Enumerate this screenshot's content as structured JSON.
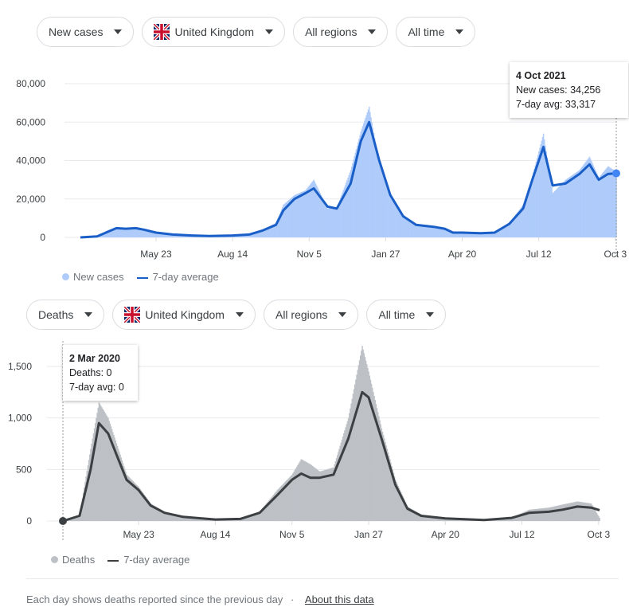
{
  "top": {
    "chips": [
      {
        "label": "New cases"
      },
      {
        "label": "United Kingdom",
        "flag": "uk-flag"
      },
      {
        "label": "All regions"
      },
      {
        "label": "All time"
      }
    ],
    "tooltip": {
      "date": "4 Oct 2021",
      "line1": "New cases: 34,256",
      "line2": "7-day avg: 33,317"
    },
    "legend": {
      "bars": "New cases",
      "line": "7-day average"
    }
  },
  "bottom": {
    "chips": [
      {
        "label": "Deaths"
      },
      {
        "label": "United Kingdom",
        "flag": "uk-flag"
      },
      {
        "label": "All regions"
      },
      {
        "label": "All time"
      }
    ],
    "tooltip": {
      "date": "2 Mar 2020",
      "line1": "Deaths: 0",
      "line2": "7-day avg: 0"
    },
    "legend": {
      "bars": "Deaths",
      "line": "7-day average"
    }
  },
  "footer": {
    "note": "Each day shows deaths reported since the previous day",
    "separator": "·",
    "link": "About this data"
  },
  "chart_data": [
    {
      "type": "bar+line",
      "x_range": [
        "2020-03-02",
        "2021-10-04"
      ],
      "ylim": [
        0,
        80000
      ],
      "yticks": [
        {
          "v": 0,
          "label": "0"
        },
        {
          "v": 20000,
          "label": "20,000"
        },
        {
          "v": 40000,
          "label": "40,000"
        },
        {
          "v": 60000,
          "label": "60,000"
        },
        {
          "v": 80000,
          "label": "80,000"
        }
      ],
      "xticks": [
        {
          "d": "2020-05-23",
          "label": "May 23"
        },
        {
          "d": "2020-08-14",
          "label": "Aug 14"
        },
        {
          "d": "2020-11-05",
          "label": "Nov 5"
        },
        {
          "d": "2021-01-27",
          "label": "Jan 27"
        },
        {
          "d": "2021-04-20",
          "label": "Apr 20"
        },
        {
          "d": "2021-07-12",
          "label": "Jul 12"
        },
        {
          "d": "2021-10-03",
          "label": "Oct 3"
        }
      ],
      "grid": true,
      "legend": "bottom-left",
      "colors": {
        "bars": "#aecbfa",
        "line": "#1a5fc8",
        "point": "#4285f4"
      },
      "series": [
        {
          "name": "New cases",
          "points": [
            [
              "2020-03-02",
              0
            ],
            [
              "2020-03-20",
              600
            ],
            [
              "2020-04-01",
              3500
            ],
            [
              "2020-04-10",
              5200
            ],
            [
              "2020-04-20",
              4800
            ],
            [
              "2020-05-01",
              5000
            ],
            [
              "2020-05-10",
              4200
            ],
            [
              "2020-05-23",
              2700
            ],
            [
              "2020-06-10",
              1600
            ],
            [
              "2020-07-01",
              1000
            ],
            [
              "2020-07-20",
              700
            ],
            [
              "2020-08-14",
              1100
            ],
            [
              "2020-09-01",
              1700
            ],
            [
              "2020-09-15",
              4000
            ],
            [
              "2020-09-30",
              7500
            ],
            [
              "2020-10-08",
              17000
            ],
            [
              "2020-10-20",
              22000
            ],
            [
              "2020-11-01",
              24500
            ],
            [
              "2020-11-10",
              30000
            ],
            [
              "2020-11-25",
              15000
            ],
            [
              "2020-12-05",
              15500
            ],
            [
              "2020-12-20",
              35000
            ],
            [
              "2020-12-31",
              55000
            ],
            [
              "2021-01-09",
              68000
            ],
            [
              "2021-01-20",
              38000
            ],
            [
              "2021-02-01",
              21000
            ],
            [
              "2021-02-15",
              10500
            ],
            [
              "2021-03-01",
              6000
            ],
            [
              "2021-03-20",
              5500
            ],
            [
              "2021-04-01",
              4500
            ],
            [
              "2021-04-10",
              2500
            ],
            [
              "2021-04-20",
              2700
            ],
            [
              "2021-05-10",
              2300
            ],
            [
              "2021-05-25",
              2700
            ],
            [
              "2021-06-10",
              7500
            ],
            [
              "2021-06-25",
              17000
            ],
            [
              "2021-07-05",
              32000
            ],
            [
              "2021-07-17",
              54000
            ],
            [
              "2021-07-27",
              23000
            ],
            [
              "2021-08-10",
              30000
            ],
            [
              "2021-08-25",
              35000
            ],
            [
              "2021-09-05",
              42000
            ],
            [
              "2021-09-15",
              31000
            ],
            [
              "2021-09-25",
              37000
            ],
            [
              "2021-10-04",
              34256
            ]
          ]
        },
        {
          "name": "7-day average",
          "points": [
            [
              "2020-03-02",
              0
            ],
            [
              "2020-03-20",
              500
            ],
            [
              "2020-04-01",
              3000
            ],
            [
              "2020-04-10",
              4800
            ],
            [
              "2020-04-20",
              4500
            ],
            [
              "2020-05-01",
              4800
            ],
            [
              "2020-05-10",
              4000
            ],
            [
              "2020-05-23",
              2500
            ],
            [
              "2020-06-10",
              1500
            ],
            [
              "2020-07-01",
              1000
            ],
            [
              "2020-07-20",
              700
            ],
            [
              "2020-08-14",
              1000
            ],
            [
              "2020-09-01",
              1500
            ],
            [
              "2020-09-15",
              3500
            ],
            [
              "2020-09-30",
              6500
            ],
            [
              "2020-10-08",
              14000
            ],
            [
              "2020-10-20",
              20000
            ],
            [
              "2020-11-01",
              23000
            ],
            [
              "2020-11-10",
              25500
            ],
            [
              "2020-11-25",
              16000
            ],
            [
              "2020-12-05",
              15000
            ],
            [
              "2020-12-20",
              28000
            ],
            [
              "2020-12-31",
              50000
            ],
            [
              "2021-01-09",
              60000
            ],
            [
              "2021-01-20",
              40000
            ],
            [
              "2021-02-01",
              22000
            ],
            [
              "2021-02-15",
              11000
            ],
            [
              "2021-03-01",
              6500
            ],
            [
              "2021-03-20",
              5500
            ],
            [
              "2021-04-01",
              4500
            ],
            [
              "2021-04-10",
              2500
            ],
            [
              "2021-04-20",
              2500
            ],
            [
              "2021-05-10",
              2200
            ],
            [
              "2021-05-25",
              2500
            ],
            [
              "2021-06-10",
              7000
            ],
            [
              "2021-06-25",
              15000
            ],
            [
              "2021-07-05",
              30000
            ],
            [
              "2021-07-17",
              47000
            ],
            [
              "2021-07-27",
              27000
            ],
            [
              "2021-08-10",
              28000
            ],
            [
              "2021-08-25",
              33000
            ],
            [
              "2021-09-05",
              38000
            ],
            [
              "2021-09-15",
              30000
            ],
            [
              "2021-09-25",
              33000
            ],
            [
              "2021-10-04",
              33317
            ]
          ]
        }
      ]
    },
    {
      "type": "bar+line",
      "x_range": [
        "2020-03-02",
        "2021-10-04"
      ],
      "ylim": [
        0,
        1700
      ],
      "yticks": [
        {
          "v": 0,
          "label": "0"
        },
        {
          "v": 500,
          "label": "500"
        },
        {
          "v": 1000,
          "label": "1,000"
        },
        {
          "v": 1500,
          "label": "1,500"
        }
      ],
      "xticks": [
        {
          "d": "2020-05-23",
          "label": "May 23"
        },
        {
          "d": "2020-08-14",
          "label": "Aug 14"
        },
        {
          "d": "2020-11-05",
          "label": "Nov 5"
        },
        {
          "d": "2021-01-27",
          "label": "Jan 27"
        },
        {
          "d": "2021-04-20",
          "label": "Apr 20"
        },
        {
          "d": "2021-07-12",
          "label": "Jul 12"
        },
        {
          "d": "2021-10-03",
          "label": "Oct 3"
        }
      ],
      "grid": true,
      "legend": "bottom-left",
      "colors": {
        "bars": "#bdc1c6",
        "line": "#3c4043",
        "point": "#3c4043"
      },
      "series": [
        {
          "name": "Deaths",
          "points": [
            [
              "2020-03-02",
              0
            ],
            [
              "2020-03-20",
              60
            ],
            [
              "2020-04-01",
              700
            ],
            [
              "2020-04-10",
              1150
            ],
            [
              "2020-04-20",
              1000
            ],
            [
              "2020-05-01",
              700
            ],
            [
              "2020-05-10",
              450
            ],
            [
              "2020-05-23",
              330
            ],
            [
              "2020-06-05",
              170
            ],
            [
              "2020-06-20",
              90
            ],
            [
              "2020-07-10",
              45
            ],
            [
              "2020-08-14",
              15
            ],
            [
              "2020-09-10",
              25
            ],
            [
              "2020-10-01",
              90
            ],
            [
              "2020-10-20",
              300
            ],
            [
              "2020-11-05",
              450
            ],
            [
              "2020-11-15",
              600
            ],
            [
              "2020-11-25",
              550
            ],
            [
              "2020-12-05",
              480
            ],
            [
              "2020-12-20",
              520
            ],
            [
              "2021-01-05",
              1000
            ],
            [
              "2021-01-20",
              1700
            ],
            [
              "2021-01-27",
              1450
            ],
            [
              "2021-02-10",
              900
            ],
            [
              "2021-02-25",
              400
            ],
            [
              "2021-03-10",
              140
            ],
            [
              "2021-03-25",
              60
            ],
            [
              "2021-04-20",
              30
            ],
            [
              "2021-06-01",
              12
            ],
            [
              "2021-07-01",
              35
            ],
            [
              "2021-07-20",
              110
            ],
            [
              "2021-08-10",
              130
            ],
            [
              "2021-08-25",
              160
            ],
            [
              "2021-09-10",
              190
            ],
            [
              "2021-09-25",
              170
            ],
            [
              "2021-10-04",
              30
            ]
          ]
        },
        {
          "name": "7-day average",
          "points": [
            [
              "2020-03-02",
              0
            ],
            [
              "2020-03-20",
              50
            ],
            [
              "2020-04-01",
              500
            ],
            [
              "2020-04-10",
              950
            ],
            [
              "2020-04-20",
              850
            ],
            [
              "2020-05-01",
              600
            ],
            [
              "2020-05-10",
              400
            ],
            [
              "2020-05-23",
              300
            ],
            [
              "2020-06-05",
              150
            ],
            [
              "2020-06-20",
              80
            ],
            [
              "2020-07-10",
              40
            ],
            [
              "2020-08-14",
              15
            ],
            [
              "2020-09-10",
              20
            ],
            [
              "2020-10-01",
              80
            ],
            [
              "2020-10-20",
              250
            ],
            [
              "2020-11-05",
              400
            ],
            [
              "2020-11-15",
              460
            ],
            [
              "2020-11-25",
              420
            ],
            [
              "2020-12-05",
              420
            ],
            [
              "2020-12-20",
              450
            ],
            [
              "2021-01-05",
              800
            ],
            [
              "2021-01-20",
              1250
            ],
            [
              "2021-01-27",
              1200
            ],
            [
              "2021-02-10",
              800
            ],
            [
              "2021-02-25",
              350
            ],
            [
              "2021-03-10",
              120
            ],
            [
              "2021-03-25",
              50
            ],
            [
              "2021-04-20",
              25
            ],
            [
              "2021-06-01",
              10
            ],
            [
              "2021-07-01",
              30
            ],
            [
              "2021-07-20",
              80
            ],
            [
              "2021-08-10",
              90
            ],
            [
              "2021-08-25",
              110
            ],
            [
              "2021-09-10",
              140
            ],
            [
              "2021-09-25",
              130
            ],
            [
              "2021-10-04",
              105
            ]
          ]
        }
      ]
    }
  ]
}
